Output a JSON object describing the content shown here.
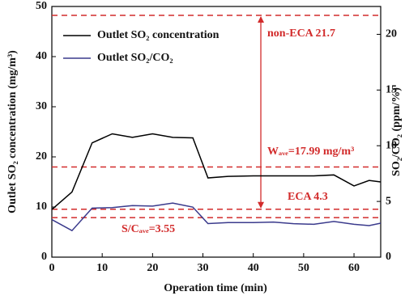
{
  "chart_data": {
    "type": "line",
    "xlabel": "Operation time (min)",
    "ylabel": "Outlet SO₂ concentration (mg/m³)",
    "y2label": "SO₂/CO₂ (ppm/%)",
    "xlim": [
      0,
      65.3
    ],
    "xticks": [
      0,
      10,
      20,
      30,
      40,
      50,
      60
    ],
    "ylim": [
      0,
      50
    ],
    "yticks": [
      0,
      10,
      20,
      30,
      40,
      50
    ],
    "y2lim": [
      0,
      22.5
    ],
    "y2ticks": [
      0,
      5,
      10,
      15,
      20
    ],
    "legend": "upper left",
    "series": [
      {
        "name": "Outlet SO₂ concentration",
        "color": "#000000",
        "x": [
          0,
          4,
          8,
          12,
          16,
          20,
          24,
          28,
          31,
          35,
          40,
          44,
          48,
          52,
          56,
          60,
          63,
          65.3
        ],
        "values": [
          9.5,
          13,
          22.8,
          24.6,
          23.9,
          24.6,
          23.9,
          23.8,
          15.8,
          16.1,
          16.2,
          16.2,
          16.2,
          16.2,
          16.4,
          14.2,
          15.3,
          15.0
        ]
      },
      {
        "name": "Outlet SO₂/CO₂",
        "color": "#3a3a8c",
        "axis": "y2",
        "x": [
          0,
          4,
          8,
          12,
          16,
          20,
          24,
          28,
          31,
          35,
          40,
          44,
          48,
          52,
          56,
          60,
          63,
          65.3
        ],
        "values": [
          3.37,
          2.38,
          4.4,
          4.45,
          4.63,
          4.58,
          4.85,
          4.49,
          3.01,
          3.1,
          3.1,
          3.15,
          3.0,
          2.95,
          3.2,
          2.95,
          2.83,
          3.05
        ]
      }
    ],
    "reference_lines": [
      {
        "value": 21.7,
        "axis": "y2",
        "label": "non-ECA 21.7",
        "color": "#d22b2b"
      },
      {
        "value": 17.99,
        "axis": "y",
        "label": "Wₐᵥₑ=17.99 mg/m³",
        "color": "#d22b2b"
      },
      {
        "value": 4.3,
        "axis": "y2",
        "label": "ECA 4.3",
        "color": "#d22b2b"
      },
      {
        "value": 3.55,
        "axis": "y2",
        "label": "S/Cₐᵥₑ=3.55",
        "color": "#d22b2b"
      }
    ]
  }
}
